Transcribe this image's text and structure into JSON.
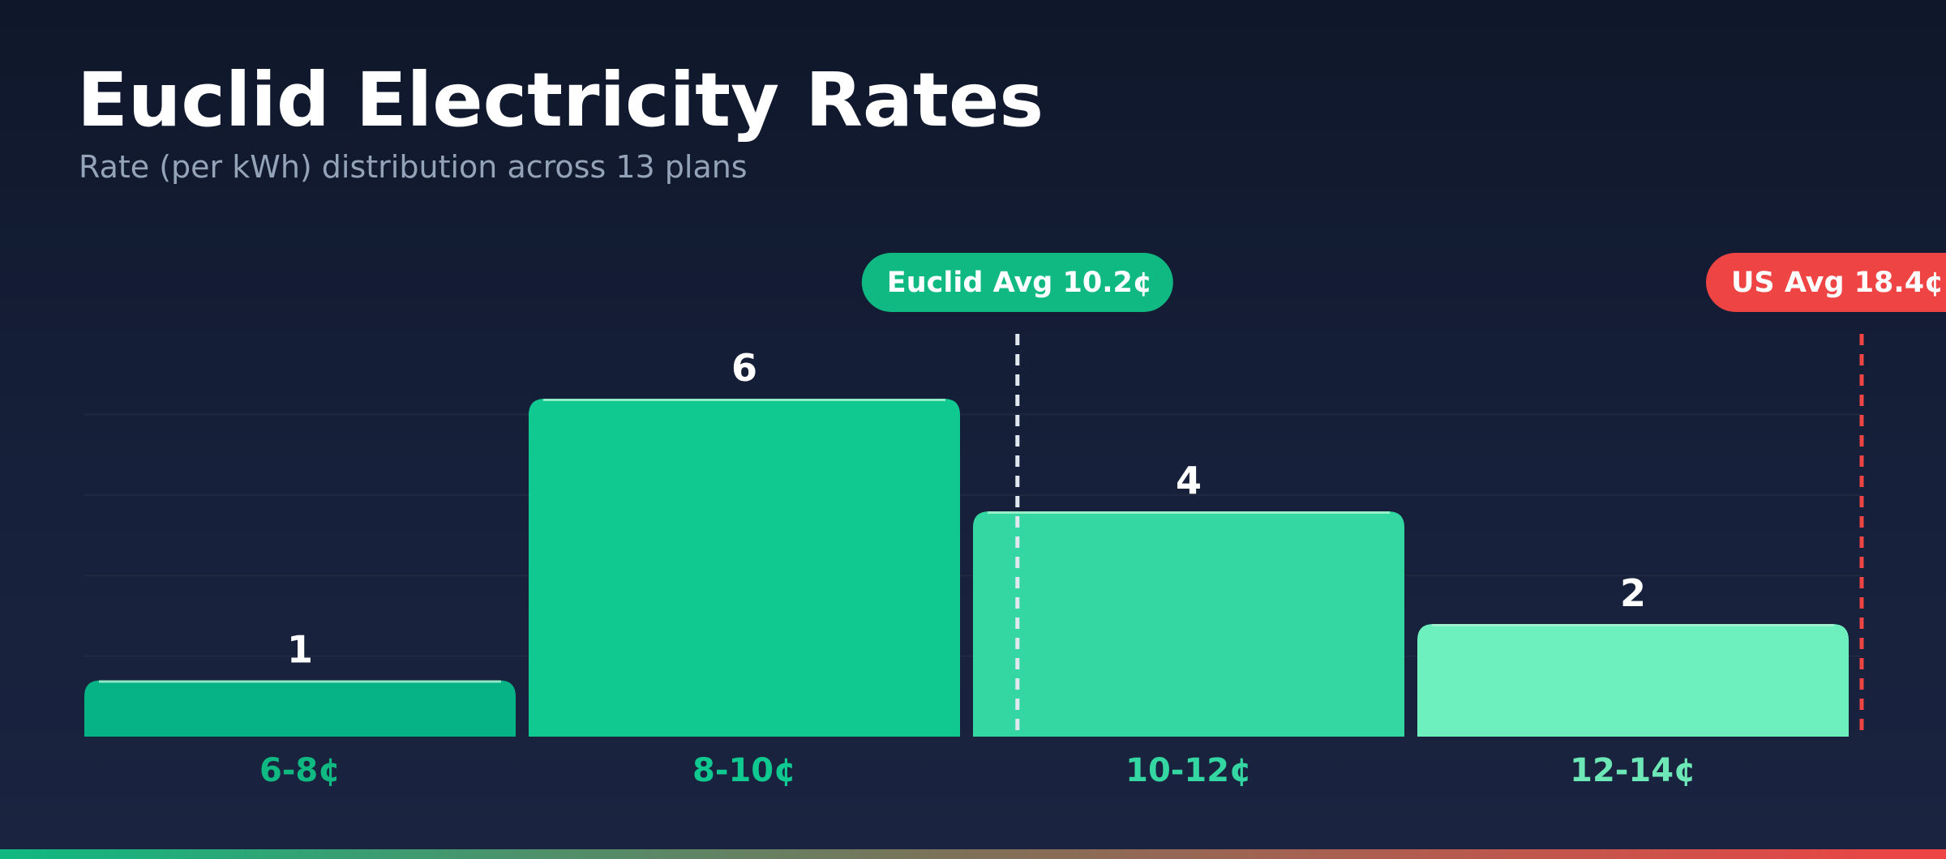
{
  "header": {
    "title": "Euclid Electricity Rates",
    "subtitle": "Rate (per kWh) distribution across 13 plans"
  },
  "chart_data": {
    "type": "bar",
    "title": "Euclid Electricity Rates",
    "subtitle": "Rate (per kWh) distribution across 13 plans",
    "categories": [
      "6-8¢",
      "8-10¢",
      "10-12¢",
      "12-14¢"
    ],
    "values": [
      1,
      6,
      4,
      2
    ],
    "bar_colors": [
      "#05b386",
      "#10c990",
      "#34d6a2",
      "#6eefbe"
    ],
    "label_colors": [
      "#10b981",
      "#10c990",
      "#34d6a2",
      "#6ee7b7"
    ],
    "category_range": [
      6,
      14
    ],
    "ylim": [
      0,
      7
    ],
    "grid": true,
    "reference_lines": [
      {
        "label": "Euclid Avg 10.2¢",
        "value": 10.2,
        "color": "#10b981",
        "line_color": "#e2e8f0"
      },
      {
        "label": "US Avg 18.4¢",
        "value": 14.0,
        "color": "#ef4444",
        "line_color": "#ef4444"
      }
    ]
  },
  "colors": {
    "background": "#0f172a",
    "accent": "#10b981",
    "danger": "#ef4444",
    "gridline": "#1f2a40",
    "bottom_gradient": [
      "#10b981",
      "#ef4444"
    ]
  }
}
